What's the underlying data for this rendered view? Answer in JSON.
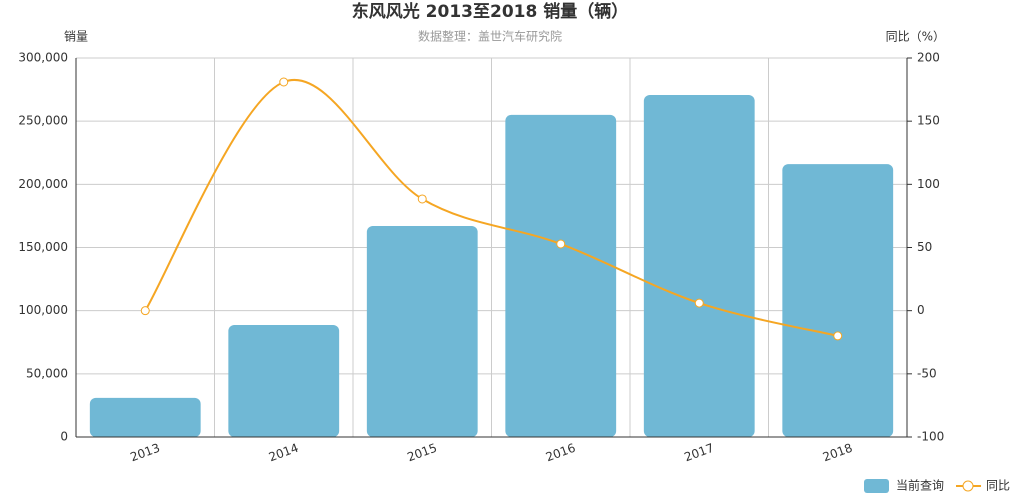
{
  "chart_data": {
    "type": "bar-line",
    "title": "东风风光 2013至2018 销量（辆）",
    "subtitle": "数据整理：盖世汽车研究院",
    "y_label": "销量",
    "y2_label": "同比（%）",
    "categories": [
      "2013",
      "2014",
      "2015",
      "2016",
      "2017",
      "2018"
    ],
    "series": [
      {
        "name": "当前查询",
        "type": "bar",
        "color": "#70b8d5",
        "values": [
          31000,
          88700,
          167000,
          255000,
          270700,
          216000
        ]
      },
      {
        "name": "同比",
        "type": "line",
        "axis": "y2",
        "color": "#f5a623",
        "values": [
          0,
          181,
          88.4,
          52.8,
          6,
          -20
        ]
      }
    ],
    "ylim": [
      0,
      300000
    ],
    "yticks": [
      0,
      {
        "value": 50000,
        "label": "50,000"
      },
      {
        "value": 100000,
        "label": "100,000"
      },
      {
        "value": 150000,
        "label": "150,000"
      },
      {
        "value": 200000,
        "label": "200,000"
      },
      {
        "value": 250000,
        "label": "250,000"
      },
      {
        "value": 300000,
        "label": "300,000"
      }
    ],
    "y2lim": [
      -100,
      200
    ],
    "y2ticks": [
      -100,
      -50,
      0,
      50,
      100,
      150,
      200
    ],
    "grid": true
  }
}
